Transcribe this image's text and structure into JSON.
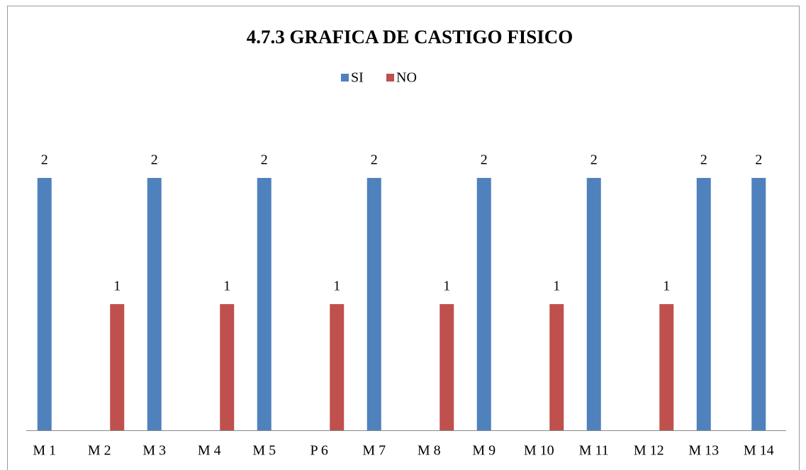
{
  "chart_data": {
    "type": "bar",
    "title": "4.7.3 GRAFICA DE  CASTIGO FISICO",
    "categories": [
      "M 1",
      "M 2",
      "M 3",
      "M 4",
      "M 5",
      "P 6",
      "M 7",
      "M 8",
      "M 9",
      "M 10",
      "M 11",
      "M 12",
      "M 13",
      "M 14"
    ],
    "series": [
      {
        "name": "SI",
        "color": "#4f81bd",
        "values": [
          2,
          null,
          2,
          null,
          2,
          null,
          2,
          null,
          2,
          null,
          2,
          null,
          2,
          2
        ]
      },
      {
        "name": "NO",
        "color": "#c0504d",
        "values": [
          null,
          1,
          null,
          1,
          null,
          1,
          null,
          1,
          null,
          1,
          null,
          1,
          null,
          null
        ]
      }
    ],
    "ylim": [
      0,
      2.5
    ],
    "legend": "top",
    "data_labels": true
  }
}
